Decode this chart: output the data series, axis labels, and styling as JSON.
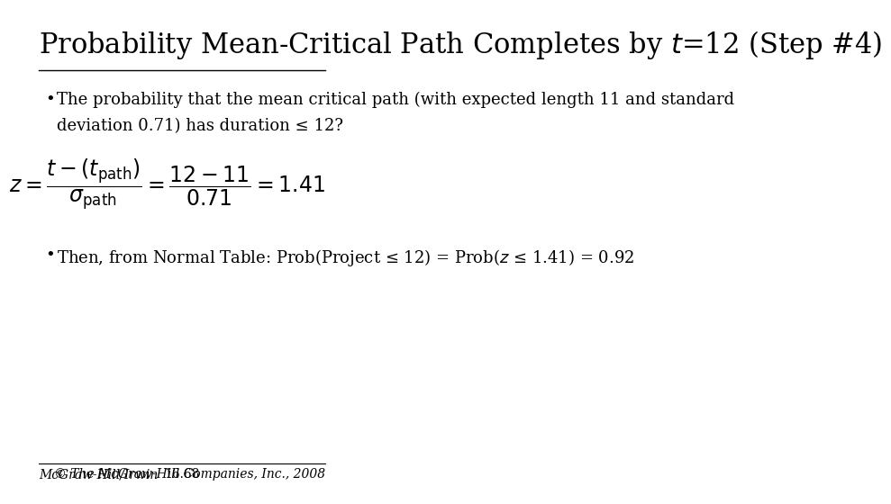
{
  "title": "Probability Mean-Critical Path Completes by $t$=12 (Step #4)",
  "title_fontsize": 22,
  "background_color": "#ffffff",
  "bullet1_line1": "The probability that the mean critical path (with expected length 11 and standard",
  "bullet1_line2": "deviation 0.71) has duration ≤ 12?",
  "formula": "$z=\\dfrac{t-(t_{\\mathrm{path}})}{\\sigma_{\\mathrm{path}}}=\\dfrac{12-11}{0.71}=1.41$",
  "bullet2": "Then, from Normal Table: Prob(Project ≤ 12) = Prob($z$ ≤ 1.41) = 0.92",
  "footer_left": "McGraw-Hill/Irwin",
  "footer_center": "16.68",
  "footer_right": "© The McGraw-Hill Companies, Inc., 2008",
  "text_color": "#000000",
  "title_color": "#000000",
  "footer_color": "#000000",
  "bullet_fontsize": 13,
  "formula_fontsize": 17,
  "footer_fontsize": 10
}
